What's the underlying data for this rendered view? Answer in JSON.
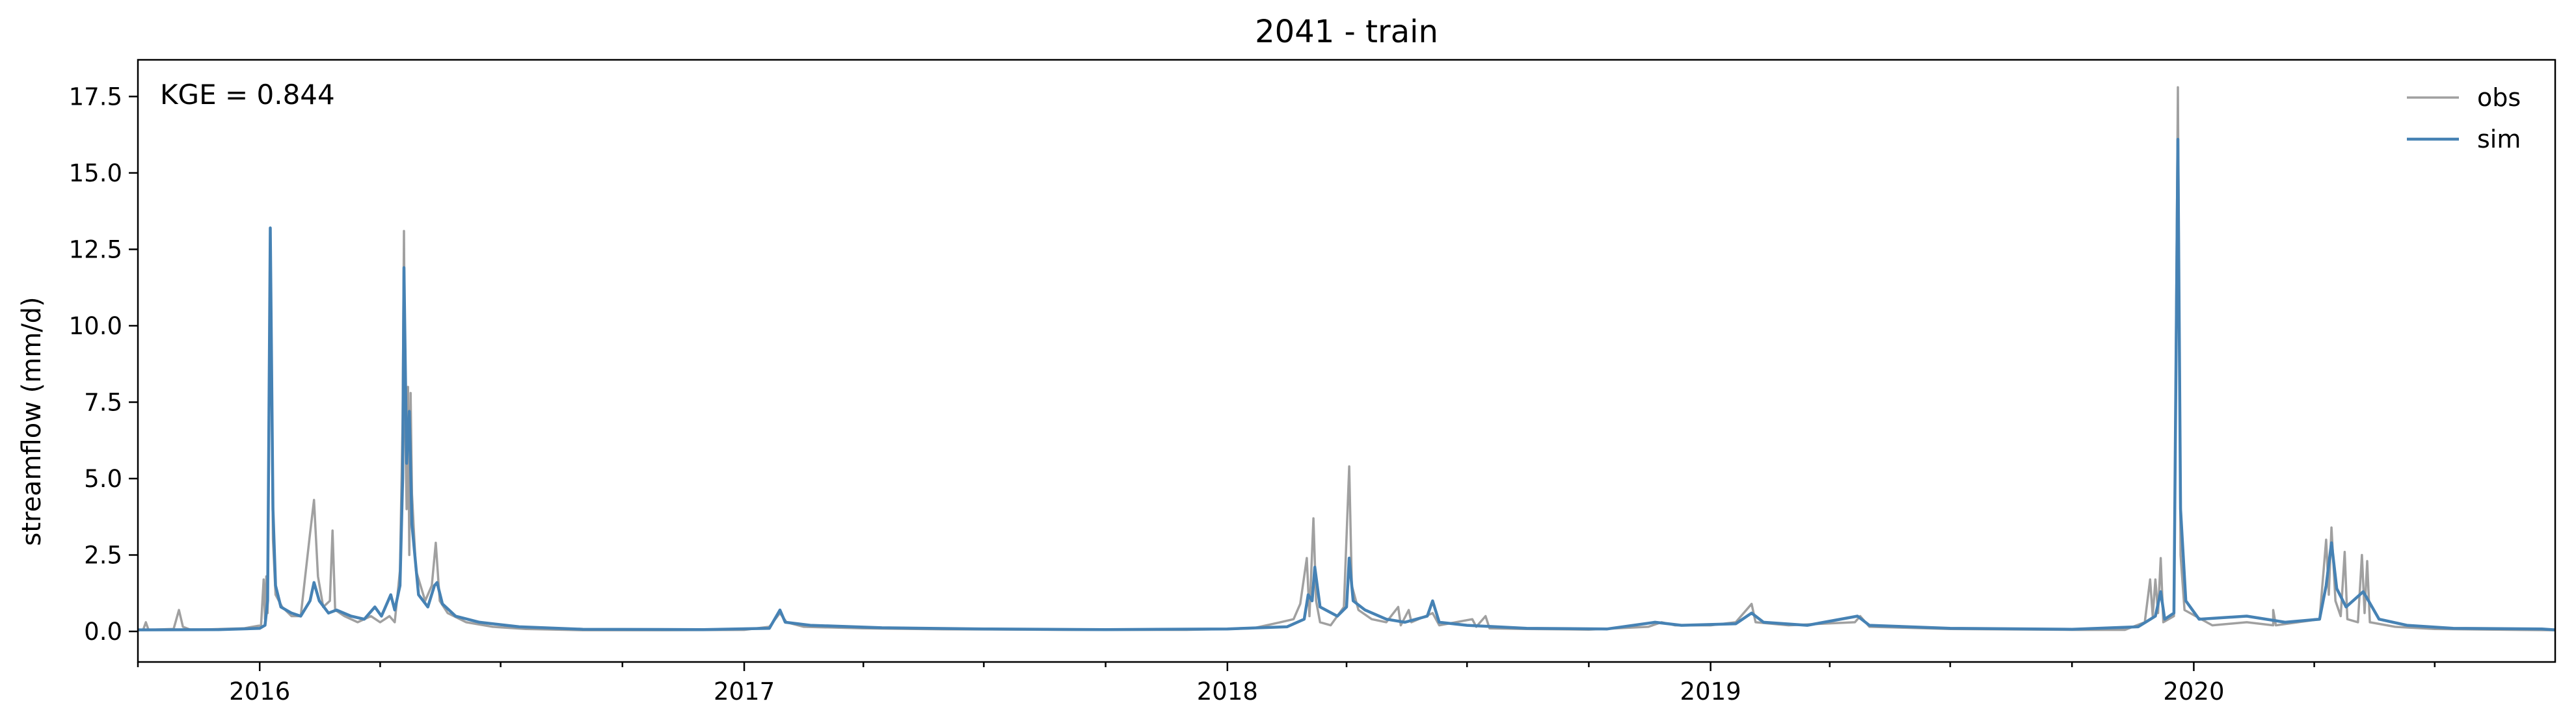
{
  "chart_data": {
    "type": "line",
    "title": "2041 - train",
    "xlabel": "",
    "ylabel": "streamflow (mm/d)",
    "annotation": "KGE = 0.844",
    "x_range": [
      "2015-10-01",
      "2020-09-30"
    ],
    "ylim": [
      -1.0,
      18.7
    ],
    "y_ticks": [
      0.0,
      2.5,
      5.0,
      7.5,
      10.0,
      12.5,
      15.0,
      17.5
    ],
    "y_tick_labels": [
      "0.0",
      "2.5",
      "5.0",
      "7.5",
      "10.0",
      "12.5",
      "15.0",
      "17.5"
    ],
    "x_major_ticks": [
      "2016-01-01",
      "2017-01-01",
      "2018-01-01",
      "2019-01-01",
      "2020-01-01"
    ],
    "x_major_tick_labels": [
      "2016",
      "2017",
      "2018",
      "2019",
      "2020"
    ],
    "x_minor_ticks": [
      "2015-10-01",
      "2016-04-01",
      "2016-07-01",
      "2016-10-01",
      "2017-04-01",
      "2017-07-01",
      "2017-10-01",
      "2018-04-01",
      "2018-07-01",
      "2018-10-01",
      "2019-04-01",
      "2019-07-01",
      "2019-10-01",
      "2020-04-01",
      "2020-07-01"
    ],
    "grid": false,
    "legend_position": "top-right",
    "series": [
      {
        "name": "obs",
        "color": "#a0a0a0",
        "points": [
          [
            "2015-10-01",
            0.05
          ],
          [
            "2015-10-05",
            0.05
          ],
          [
            "2015-10-07",
            0.3
          ],
          [
            "2015-10-09",
            0.05
          ],
          [
            "2015-10-28",
            0.08
          ],
          [
            "2015-11-01",
            0.7
          ],
          [
            "2015-11-04",
            0.15
          ],
          [
            "2015-11-10",
            0.05
          ],
          [
            "2015-12-20",
            0.1
          ],
          [
            "2016-01-02",
            0.2
          ],
          [
            "2016-01-04",
            1.7
          ],
          [
            "2016-01-05",
            0.4
          ],
          [
            "2016-01-06",
            1.8
          ],
          [
            "2016-01-07",
            0.6
          ],
          [
            "2016-01-09",
            12.9
          ],
          [
            "2016-01-11",
            3.0
          ],
          [
            "2016-01-13",
            1.2
          ],
          [
            "2016-01-18",
            0.8
          ],
          [
            "2016-01-25",
            0.5
          ],
          [
            "2016-02-01",
            0.5
          ],
          [
            "2016-02-08",
            3.2
          ],
          [
            "2016-02-11",
            4.3
          ],
          [
            "2016-02-14",
            1.8
          ],
          [
            "2016-02-18",
            0.8
          ],
          [
            "2016-02-23",
            1.0
          ],
          [
            "2016-02-25",
            3.3
          ],
          [
            "2016-02-27",
            0.7
          ],
          [
            "2016-03-05",
            0.5
          ],
          [
            "2016-03-15",
            0.3
          ],
          [
            "2016-03-25",
            0.5
          ],
          [
            "2016-04-01",
            0.3
          ],
          [
            "2016-04-08",
            0.5
          ],
          [
            "2016-04-12",
            0.3
          ],
          [
            "2016-04-16",
            2.0
          ],
          [
            "2016-04-18",
            7.0
          ],
          [
            "2016-04-19",
            13.1
          ],
          [
            "2016-04-20",
            6.5
          ],
          [
            "2016-04-21",
            4.0
          ],
          [
            "2016-04-22",
            8.0
          ],
          [
            "2016-04-23",
            2.5
          ],
          [
            "2016-04-24",
            7.8
          ],
          [
            "2016-04-25",
            4.5
          ],
          [
            "2016-04-28",
            2.0
          ],
          [
            "2016-05-05",
            1.0
          ],
          [
            "2016-05-10",
            1.5
          ],
          [
            "2016-05-13",
            2.9
          ],
          [
            "2016-05-16",
            1.0
          ],
          [
            "2016-05-22",
            0.6
          ],
          [
            "2016-06-05",
            0.3
          ],
          [
            "2016-06-25",
            0.15
          ],
          [
            "2016-07-20",
            0.08
          ],
          [
            "2016-09-01",
            0.04
          ],
          [
            "2016-11-01",
            0.04
          ],
          [
            "2017-01-01",
            0.05
          ],
          [
            "2017-01-20",
            0.15
          ],
          [
            "2017-01-28",
            0.6
          ],
          [
            "2017-02-02",
            0.3
          ],
          [
            "2017-02-15",
            0.15
          ],
          [
            "2017-04-01",
            0.1
          ],
          [
            "2017-06-01",
            0.07
          ],
          [
            "2017-09-01",
            0.05
          ],
          [
            "2017-12-01",
            0.05
          ],
          [
            "2018-01-20",
            0.1
          ],
          [
            "2018-02-10",
            0.3
          ],
          [
            "2018-02-20",
            0.4
          ],
          [
            "2018-02-25",
            0.9
          ],
          [
            "2018-03-02",
            2.4
          ],
          [
            "2018-03-04",
            0.5
          ],
          [
            "2018-03-07",
            3.7
          ],
          [
            "2018-03-09",
            1.0
          ],
          [
            "2018-03-12",
            0.3
          ],
          [
            "2018-03-20",
            0.2
          ],
          [
            "2018-03-30",
            0.8
          ],
          [
            "2018-04-03",
            5.4
          ],
          [
            "2018-04-05",
            1.5
          ],
          [
            "2018-04-10",
            0.7
          ],
          [
            "2018-04-20",
            0.4
          ],
          [
            "2018-05-01",
            0.3
          ],
          [
            "2018-05-10",
            0.8
          ],
          [
            "2018-05-12",
            0.2
          ],
          [
            "2018-05-18",
            0.7
          ],
          [
            "2018-05-20",
            0.3
          ],
          [
            "2018-06-05",
            0.6
          ],
          [
            "2018-06-10",
            0.2
          ],
          [
            "2018-07-05",
            0.4
          ],
          [
            "2018-07-08",
            0.15
          ],
          [
            "2018-07-15",
            0.5
          ],
          [
            "2018-07-18",
            0.1
          ],
          [
            "2018-08-15",
            0.08
          ],
          [
            "2018-10-01",
            0.06
          ],
          [
            "2018-11-15",
            0.15
          ],
          [
            "2018-11-25",
            0.3
          ],
          [
            "2018-12-05",
            0.2
          ],
          [
            "2019-01-01",
            0.2
          ],
          [
            "2019-01-20",
            0.3
          ],
          [
            "2019-02-01",
            0.9
          ],
          [
            "2019-02-04",
            0.3
          ],
          [
            "2019-03-01",
            0.2
          ],
          [
            "2019-04-20",
            0.3
          ],
          [
            "2019-04-24",
            0.5
          ],
          [
            "2019-05-01",
            0.15
          ],
          [
            "2019-07-01",
            0.08
          ],
          [
            "2019-10-01",
            0.05
          ],
          [
            "2019-11-10",
            0.05
          ],
          [
            "2019-11-25",
            0.3
          ],
          [
            "2019-11-29",
            1.7
          ],
          [
            "2019-12-01",
            0.5
          ],
          [
            "2019-12-03",
            1.7
          ],
          [
            "2019-12-05",
            0.6
          ],
          [
            "2019-12-07",
            2.4
          ],
          [
            "2019-12-09",
            0.3
          ],
          [
            "2019-12-17",
            0.5
          ],
          [
            "2019-12-20",
            17.8
          ],
          [
            "2019-12-22",
            2.5
          ],
          [
            "2019-12-25",
            0.7
          ],
          [
            "2020-01-15",
            0.2
          ],
          [
            "2020-02-10",
            0.3
          ],
          [
            "2020-03-01",
            0.2
          ],
          [
            "2020-03-01",
            0.7
          ],
          [
            "2020-03-03",
            0.2
          ],
          [
            "2020-04-05",
            0.4
          ],
          [
            "2020-04-10",
            3.0
          ],
          [
            "2020-04-12",
            1.2
          ],
          [
            "2020-04-14",
            3.4
          ],
          [
            "2020-04-17",
            1.0
          ],
          [
            "2020-04-21",
            0.5
          ],
          [
            "2020-04-24",
            2.6
          ],
          [
            "2020-04-26",
            0.4
          ],
          [
            "2020-05-04",
            0.3
          ],
          [
            "2020-05-07",
            2.5
          ],
          [
            "2020-05-09",
            0.6
          ],
          [
            "2020-05-11",
            2.3
          ],
          [
            "2020-05-13",
            0.3
          ],
          [
            "2020-06-01",
            0.15
          ],
          [
            "2020-07-01",
            0.08
          ],
          [
            "2020-09-01",
            0.05
          ],
          [
            "2020-09-30",
            0.04
          ]
        ]
      },
      {
        "name": "sim",
        "color": "#4682b4",
        "points": [
          [
            "2015-10-01",
            0.05
          ],
          [
            "2015-12-01",
            0.06
          ],
          [
            "2016-01-01",
            0.1
          ],
          [
            "2016-01-05",
            0.2
          ],
          [
            "2016-01-07",
            1.0
          ],
          [
            "2016-01-09",
            13.2
          ],
          [
            "2016-01-11",
            4.0
          ],
          [
            "2016-01-13",
            1.5
          ],
          [
            "2016-01-17",
            0.8
          ],
          [
            "2016-01-25",
            0.6
          ],
          [
            "2016-02-01",
            0.5
          ],
          [
            "2016-02-08",
            1.0
          ],
          [
            "2016-02-11",
            1.6
          ],
          [
            "2016-02-15",
            1.0
          ],
          [
            "2016-02-22",
            0.6
          ],
          [
            "2016-02-28",
            0.7
          ],
          [
            "2016-03-10",
            0.5
          ],
          [
            "2016-03-20",
            0.4
          ],
          [
            "2016-03-28",
            0.8
          ],
          [
            "2016-04-02",
            0.5
          ],
          [
            "2016-04-09",
            1.2
          ],
          [
            "2016-04-12",
            0.7
          ],
          [
            "2016-04-16",
            1.5
          ],
          [
            "2016-04-18",
            5.0
          ],
          [
            "2016-04-19",
            11.9
          ],
          [
            "2016-04-21",
            5.5
          ],
          [
            "2016-04-23",
            7.2
          ],
          [
            "2016-04-25",
            3.5
          ],
          [
            "2016-04-30",
            1.2
          ],
          [
            "2016-05-07",
            0.8
          ],
          [
            "2016-05-12",
            1.5
          ],
          [
            "2016-05-14",
            1.6
          ],
          [
            "2016-05-18",
            0.9
          ],
          [
            "2016-05-28",
            0.5
          ],
          [
            "2016-06-15",
            0.3
          ],
          [
            "2016-07-15",
            0.15
          ],
          [
            "2016-09-01",
            0.07
          ],
          [
            "2016-12-01",
            0.06
          ],
          [
            "2017-01-20",
            0.1
          ],
          [
            "2017-01-28",
            0.7
          ],
          [
            "2017-02-01",
            0.3
          ],
          [
            "2017-02-20",
            0.2
          ],
          [
            "2017-04-15",
            0.12
          ],
          [
            "2017-07-01",
            0.08
          ],
          [
            "2017-10-01",
            0.06
          ],
          [
            "2018-01-01",
            0.08
          ],
          [
            "2018-02-15",
            0.15
          ],
          [
            "2018-02-28",
            0.4
          ],
          [
            "2018-03-03",
            1.2
          ],
          [
            "2018-03-06",
            1.0
          ],
          [
            "2018-03-08",
            2.1
          ],
          [
            "2018-03-12",
            0.8
          ],
          [
            "2018-03-25",
            0.5
          ],
          [
            "2018-04-01",
            0.8
          ],
          [
            "2018-04-03",
            2.4
          ],
          [
            "2018-04-06",
            1.0
          ],
          [
            "2018-04-15",
            0.7
          ],
          [
            "2018-05-01",
            0.4
          ],
          [
            "2018-05-15",
            0.3
          ],
          [
            "2018-06-01",
            0.5
          ],
          [
            "2018-06-05",
            1.0
          ],
          [
            "2018-06-10",
            0.3
          ],
          [
            "2018-07-01",
            0.2
          ],
          [
            "2018-08-15",
            0.1
          ],
          [
            "2018-10-15",
            0.08
          ],
          [
            "2018-11-20",
            0.3
          ],
          [
            "2018-12-10",
            0.2
          ],
          [
            "2019-01-20",
            0.25
          ],
          [
            "2019-02-01",
            0.6
          ],
          [
            "2019-02-10",
            0.3
          ],
          [
            "2019-03-15",
            0.2
          ],
          [
            "2019-04-22",
            0.5
          ],
          [
            "2019-05-01",
            0.2
          ],
          [
            "2019-07-01",
            0.1
          ],
          [
            "2019-10-01",
            0.07
          ],
          [
            "2019-11-20",
            0.15
          ],
          [
            "2019-12-03",
            0.5
          ],
          [
            "2019-12-07",
            1.3
          ],
          [
            "2019-12-10",
            0.4
          ],
          [
            "2019-12-17",
            0.6
          ],
          [
            "2019-12-20",
            16.1
          ],
          [
            "2019-12-22",
            4.0
          ],
          [
            "2019-12-26",
            1.0
          ],
          [
            "2020-01-05",
            0.4
          ],
          [
            "2020-02-10",
            0.5
          ],
          [
            "2020-03-10",
            0.3
          ],
          [
            "2020-04-05",
            0.4
          ],
          [
            "2020-04-10",
            1.5
          ],
          [
            "2020-04-14",
            2.9
          ],
          [
            "2020-04-18",
            1.4
          ],
          [
            "2020-04-25",
            0.8
          ],
          [
            "2020-05-08",
            1.3
          ],
          [
            "2020-05-12",
            1.0
          ],
          [
            "2020-05-20",
            0.4
          ],
          [
            "2020-06-10",
            0.2
          ],
          [
            "2020-07-15",
            0.1
          ],
          [
            "2020-09-20",
            0.08
          ],
          [
            "2020-09-30",
            0.05
          ]
        ]
      }
    ]
  }
}
